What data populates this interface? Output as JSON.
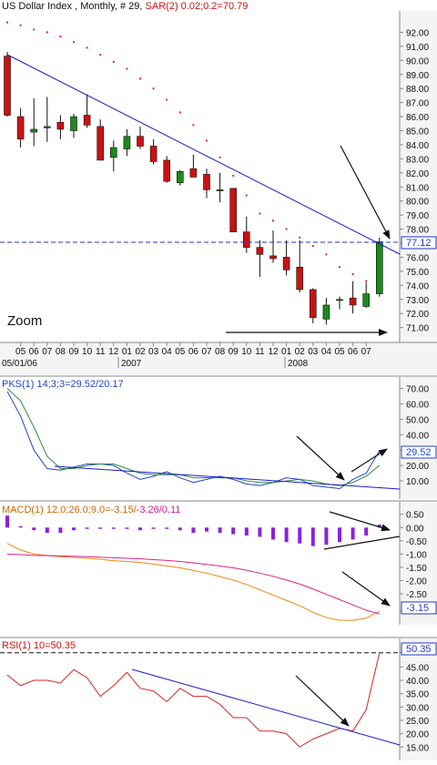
{
  "colors": {
    "up": "#1a8a1a",
    "down": "#cc1111",
    "trendline": "#1a1acc",
    "sar": "#e0204a",
    "stoch_k": "#2244cc",
    "stoch_d": "#2a8a3a",
    "macd_hist": "#8a22dd",
    "macd_line": "#ee8811",
    "macd_signal": "#dd2288",
    "rsi": "#dd2222",
    "arrow": "#111111",
    "ref_line": "#2233cc",
    "panel_bg": "#ffffff",
    "axis_bg": "#e8e8e8"
  },
  "chart_data": [
    {
      "type": "candlestick",
      "title_parts": {
        "symbol": "US Dollar Index , Monthly, # 29, ",
        "sar_label": "SAR(2) 0.02;0.2=70.79"
      },
      "annotation": "Zoom",
      "ylim": [
        70.2,
        93.0
      ],
      "y_ticks": [
        "71.00",
        "72.00",
        "73.00",
        "74.00",
        "75.00",
        "76.00",
        "77.00",
        "78.00",
        "79.00",
        "80.00",
        "81.00",
        "82.00",
        "83.00",
        "84.00",
        "85.00",
        "86.00",
        "87.00",
        "88.00",
        "89.00",
        "90.00",
        "91.00",
        "92.00"
      ],
      "last_value_label": "77.12",
      "last_value": 77.12,
      "x_ticks": [
        "05",
        "06",
        "07",
        "08",
        "09",
        "10",
        "11",
        "12",
        "01",
        "02",
        "03",
        "04",
        "05",
        "06",
        "07",
        "08",
        "09",
        "10",
        "11",
        "12",
        "01",
        "02",
        "03",
        "04",
        "05",
        "06",
        "07"
      ],
      "date_labels": [
        "05/01/06",
        "2007",
        "2008"
      ],
      "candles": [
        {
          "o": 90.3,
          "h": 90.6,
          "l": 86.0,
          "c": 86.1
        },
        {
          "o": 86.0,
          "h": 86.6,
          "l": 83.8,
          "c": 84.4
        },
        {
          "o": 84.9,
          "h": 87.3,
          "l": 83.9,
          "c": 85.1
        },
        {
          "o": 85.2,
          "h": 87.4,
          "l": 84.2,
          "c": 85.3
        },
        {
          "o": 85.6,
          "h": 86.1,
          "l": 84.4,
          "c": 85.1
        },
        {
          "o": 85.0,
          "h": 86.2,
          "l": 84.5,
          "c": 86.0
        },
        {
          "o": 86.1,
          "h": 87.6,
          "l": 85.2,
          "c": 85.4
        },
        {
          "o": 85.3,
          "h": 85.8,
          "l": 82.9,
          "c": 82.9
        },
        {
          "o": 83.1,
          "h": 84.3,
          "l": 82.1,
          "c": 83.8
        },
        {
          "o": 83.7,
          "h": 85.1,
          "l": 83.2,
          "c": 84.6
        },
        {
          "o": 84.6,
          "h": 85.3,
          "l": 83.7,
          "c": 83.9
        },
        {
          "o": 83.9,
          "h": 84.4,
          "l": 82.6,
          "c": 82.8
        },
        {
          "o": 82.9,
          "h": 83.2,
          "l": 81.3,
          "c": 81.4
        },
        {
          "o": 81.3,
          "h": 82.2,
          "l": 81.1,
          "c": 82.1
        },
        {
          "o": 82.3,
          "h": 83.3,
          "l": 81.7,
          "c": 81.7
        },
        {
          "o": 81.9,
          "h": 82.3,
          "l": 80.2,
          "c": 80.8
        },
        {
          "o": 80.8,
          "h": 82.0,
          "l": 79.9,
          "c": 80.8
        },
        {
          "o": 80.9,
          "h": 80.9,
          "l": 77.8,
          "c": 77.8
        },
        {
          "o": 77.8,
          "h": 78.9,
          "l": 76.3,
          "c": 76.7
        },
        {
          "o": 76.7,
          "h": 77.2,
          "l": 74.6,
          "c": 76.2
        },
        {
          "o": 76.1,
          "h": 77.9,
          "l": 75.6,
          "c": 75.9
        },
        {
          "o": 76.0,
          "h": 77.2,
          "l": 74.7,
          "c": 75.1
        },
        {
          "o": 75.3,
          "h": 77.2,
          "l": 73.5,
          "c": 73.7
        },
        {
          "o": 73.7,
          "h": 73.8,
          "l": 71.3,
          "c": 71.7
        },
        {
          "o": 71.6,
          "h": 73.1,
          "l": 71.2,
          "c": 72.6
        },
        {
          "o": 73.0,
          "h": 73.2,
          "l": 72.3,
          "c": 73.0
        },
        {
          "o": 73.1,
          "h": 74.3,
          "l": 72.0,
          "c": 72.6
        },
        {
          "o": 72.5,
          "h": 74.2,
          "l": 72.4,
          "c": 73.4
        },
        {
          "o": 73.4,
          "h": 77.4,
          "l": 73.2,
          "c": 77.1
        }
      ],
      "sar": [
        92.7,
        92.5,
        92.2,
        92.0,
        91.7,
        91.3,
        90.9,
        90.4,
        89.9,
        89.4,
        88.7,
        88.0,
        87.2,
        86.3,
        85.4,
        84.3,
        83.1,
        81.8,
        80.4,
        79.1,
        78.6,
        78.0,
        77.4,
        76.8,
        76.2,
        75.3,
        74.8,
        74.3,
        70.8
      ]
    },
    {
      "type": "line",
      "title": "PKS(1) 14;3;3=29.52/20.17",
      "ylim": [
        0,
        75
      ],
      "y_ticks": [
        "10.00",
        "20.00",
        "30.00",
        "40.00",
        "50.00",
        "60.00",
        "70.00"
      ],
      "last_value_label": "29.52",
      "last_value": 29.52,
      "series": [
        {
          "key": "k",
          "values": [
            68,
            52,
            30,
            18,
            17,
            19,
            21,
            21,
            20,
            15,
            11,
            13,
            16,
            12,
            9,
            11,
            13,
            11,
            8,
            7,
            9,
            12,
            11,
            7,
            6,
            5,
            11,
            15,
            29.52
          ]
        },
        {
          "key": "d",
          "values": [
            70,
            62,
            45,
            26,
            18,
            18,
            20,
            21,
            21,
            18,
            15,
            14,
            14,
            14,
            12,
            12,
            12,
            12,
            10,
            9,
            9,
            10,
            11,
            10,
            8,
            7,
            9,
            13,
            20.17
          ]
        }
      ]
    },
    {
      "type": "bar+line",
      "title_parts": {
        "macd_label": "MACD(1) 12.0;26.0;9.0=-3.15/",
        "signal_label": "-3.26/0.11"
      },
      "ylim": [
        -3.6,
        0.8
      ],
      "y_ticks": [
        "0.50",
        "0.00",
        "-0.50",
        "-1.00",
        "-1.50",
        "-2.00",
        "-2.50",
        "-3.15"
      ],
      "last_value_label": "-3.15",
      "last_value": -3.15,
      "histogram": [
        0.45,
        0.05,
        -0.1,
        -0.2,
        -0.2,
        -0.1,
        -0.05,
        -0.05,
        -0.05,
        -0.05,
        -0.1,
        -0.05,
        -0.05,
        -0.1,
        -0.2,
        -0.15,
        -0.2,
        -0.25,
        -0.3,
        -0.35,
        -0.45,
        -0.55,
        -0.6,
        -0.7,
        -0.65,
        -0.55,
        -0.45,
        -0.3,
        0.11
      ],
      "macd": [
        -0.6,
        -0.85,
        -1.0,
        -1.05,
        -1.1,
        -1.13,
        -1.16,
        -1.2,
        -1.25,
        -1.28,
        -1.32,
        -1.38,
        -1.45,
        -1.52,
        -1.62,
        -1.72,
        -1.85,
        -1.98,
        -2.15,
        -2.35,
        -2.55,
        -2.75,
        -2.95,
        -3.2,
        -3.4,
        -3.5,
        -3.5,
        -3.42,
        -3.15
      ],
      "signal": [
        -1.0,
        -1.02,
        -1.05,
        -1.06,
        -1.07,
        -1.08,
        -1.1,
        -1.12,
        -1.14,
        -1.16,
        -1.18,
        -1.21,
        -1.24,
        -1.28,
        -1.33,
        -1.39,
        -1.45,
        -1.52,
        -1.61,
        -1.72,
        -1.84,
        -1.98,
        -2.13,
        -2.32,
        -2.52,
        -2.72,
        -2.92,
        -3.12,
        -3.26
      ]
    },
    {
      "type": "line",
      "title": "RSI(1) 10=50.35",
      "ylim": [
        11,
        54
      ],
      "y_ticks": [
        "15.00",
        "20.00",
        "25.00",
        "30.00",
        "35.00",
        "40.00",
        "45.00",
        "50.35"
      ],
      "last_value_label": "50.35",
      "last_value": 50.35,
      "ref_value": 50.35,
      "series": [
        {
          "key": "rsi",
          "values": [
            42,
            38,
            40,
            40,
            39,
            44,
            41,
            34,
            38,
            43,
            37,
            36,
            32,
            37,
            34,
            34,
            31,
            26,
            26,
            21,
            21,
            20,
            15,
            18,
            20,
            22,
            21,
            29,
            50.35
          ]
        }
      ]
    }
  ]
}
